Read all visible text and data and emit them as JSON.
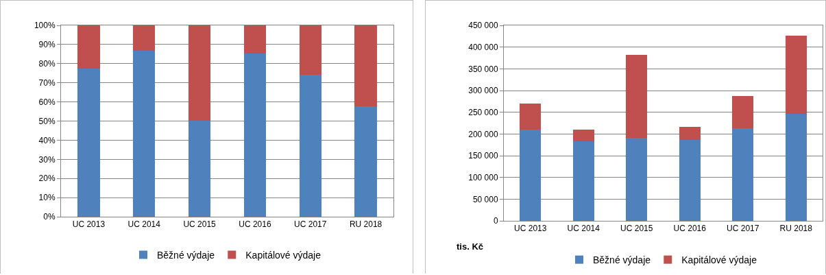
{
  "chart_data": [
    {
      "type": "bar",
      "stacked": true,
      "categories": [
        "UC 2013",
        "UC 2014",
        "UC 2015",
        "UC 2016",
        "UC 2017",
        "RU 2018"
      ],
      "series": [
        {
          "name": "Běžné výdaje",
          "color": "#4f81bd",
          "values": [
            77.5,
            86.7,
            50.2,
            85.4,
            74.1,
            57.6
          ]
        },
        {
          "name": "Kapitálové výdaje",
          "color": "#c0504d",
          "values": [
            22.5,
            13.3,
            49.8,
            14.6,
            25.9,
            42.4
          ]
        }
      ],
      "ylim": [
        0,
        100
      ],
      "yticks": [
        {
          "value": 0,
          "label": "0%"
        },
        {
          "value": 10,
          "label": "10%"
        },
        {
          "value": 20,
          "label": "20%"
        },
        {
          "value": 30,
          "label": "30%"
        },
        {
          "value": 40,
          "label": "40%"
        },
        {
          "value": 50,
          "label": "50%"
        },
        {
          "value": 60,
          "label": "60%"
        },
        {
          "value": 70,
          "label": "70%"
        },
        {
          "value": 80,
          "label": "80%"
        },
        {
          "value": 90,
          "label": "90%"
        },
        {
          "value": 100,
          "label": "100%"
        }
      ],
      "grid": "y",
      "legend": "bottom"
    },
    {
      "type": "bar",
      "stacked": true,
      "ylabel": "tis. Kč",
      "categories": [
        "UC 2013",
        "UC 2014",
        "UC 2015",
        "UC 2016",
        "UC 2017",
        "RU 2018"
      ],
      "series": [
        {
          "name": "Běžné výdaje",
          "color": "#4f81bd",
          "values": [
            210000,
            183000,
            191000,
            187000,
            213000,
            246000
          ]
        },
        {
          "name": "Kapitálové výdaje",
          "color": "#c0504d",
          "values": [
            60000,
            27000,
            191000,
            30000,
            74000,
            181000
          ]
        }
      ],
      "ylim": [
        0,
        450000
      ],
      "yticks": [
        0,
        {
          "value": 50000,
          "label": "50 000"
        },
        {
          "value": 100000,
          "label": "100 000"
        },
        {
          "value": 150000,
          "label": "150 000"
        },
        {
          "value": 200000,
          "label": "200 000"
        },
        {
          "value": 250000,
          "label": "250 000"
        },
        {
          "value": 300000,
          "label": "300 000"
        },
        {
          "value": 350000,
          "label": "350 000"
        },
        {
          "value": 400000,
          "label": "400 000"
        },
        {
          "value": 450000,
          "label": "450 000"
        }
      ],
      "grid": "y",
      "legend": "bottom"
    }
  ]
}
